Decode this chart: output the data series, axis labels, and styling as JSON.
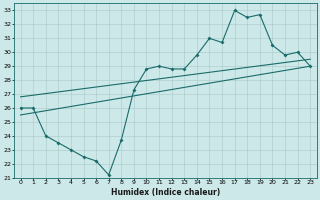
{
  "title": "",
  "xlabel": "Humidex (Indice chaleur)",
  "ylabel": "",
  "bg_color": "#cde8e8",
  "line_color": "#1a6b6b",
  "grid_color": "#a8c8c8",
  "xlim": [
    -0.5,
    23.5
  ],
  "ylim": [
    21,
    33.5
  ],
  "xticks": [
    0,
    1,
    2,
    3,
    4,
    5,
    6,
    7,
    8,
    9,
    10,
    11,
    12,
    13,
    14,
    15,
    16,
    17,
    18,
    19,
    20,
    21,
    22,
    23
  ],
  "yticks": [
    21,
    22,
    23,
    24,
    25,
    26,
    27,
    28,
    29,
    30,
    31,
    32,
    33
  ],
  "line1_x": [
    0,
    1,
    2,
    3,
    4,
    5,
    6,
    7,
    8,
    9,
    10,
    11,
    12,
    13,
    14,
    15,
    16,
    17,
    18,
    19,
    20,
    21,
    22,
    23
  ],
  "line1_y": [
    26.0,
    26.0,
    24.0,
    23.5,
    23.0,
    22.5,
    22.2,
    21.2,
    23.7,
    27.3,
    28.8,
    29.0,
    28.8,
    28.8,
    29.8,
    31.0,
    30.7,
    33.0,
    32.5,
    32.7,
    30.5,
    29.8,
    30.0,
    29.0
  ],
  "line2_x": [
    0,
    23
  ],
  "line2_y": [
    25.5,
    29.0
  ],
  "line3_x": [
    0,
    23
  ],
  "line3_y": [
    26.8,
    29.5
  ]
}
